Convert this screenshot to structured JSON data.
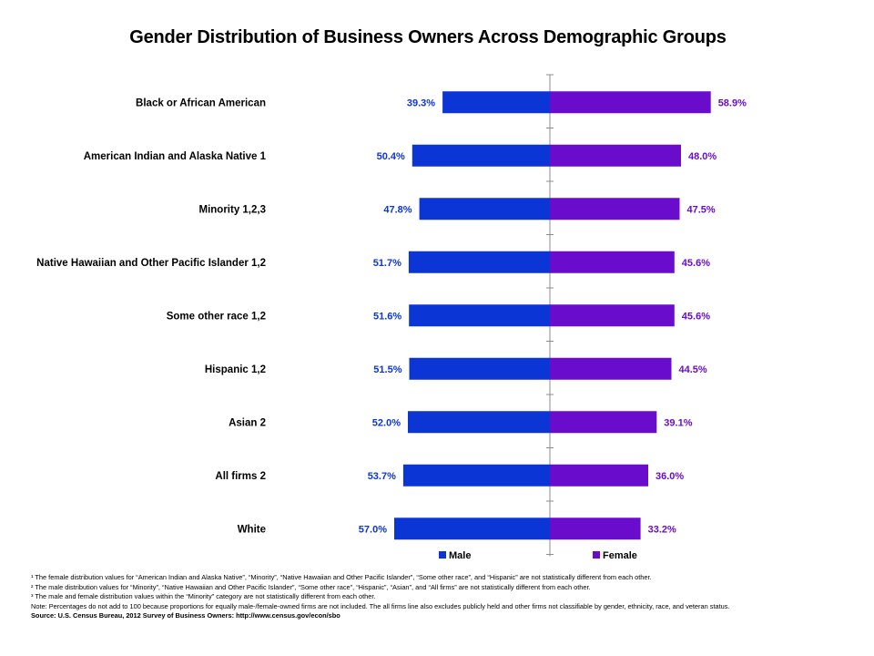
{
  "chart_data": {
    "type": "bar",
    "title": "Gender Distribution of Business Owners Across Demographic Groups",
    "categories": [
      "Black or African American",
      "American Indian and Alaska Native 1",
      "Minority 1,2,3",
      "Native Hawaiian and Other Pacific Islander 1,2",
      "Some other race 1,2",
      "Hispanic 1,2",
      "Asian 2",
      "All firms 2",
      "White"
    ],
    "series": [
      {
        "name": "Male",
        "color": "#0c35d6",
        "values": [
          39.3,
          50.4,
          47.8,
          51.7,
          51.6,
          51.5,
          52.0,
          53.7,
          57.0
        ],
        "labels": [
          "39.3%",
          "50.4%",
          "47.8%",
          "51.7%",
          "51.6%",
          "51.5%",
          "52.0%",
          "53.7%",
          "57.0%"
        ]
      },
      {
        "name": "Female",
        "color": "#6a0ccc",
        "values": [
          58.9,
          48.0,
          47.5,
          45.6,
          45.6,
          44.5,
          39.1,
          36.0,
          33.2
        ],
        "labels": [
          "58.9%",
          "48.0%",
          "47.5%",
          "45.6%",
          "45.6%",
          "44.5%",
          "39.1%",
          "36.0%",
          "33.2%"
        ]
      }
    ],
    "xlim": [
      0,
      100
    ],
    "orientation": "horizontal, diverging (male left, female right)",
    "legend": "bottom",
    "grid": false
  },
  "footnotes": {
    "fn1": "¹ The female distribution values for “American Indian and Alaska Native”, “Minority”, “Native Hawaiian and Other Pacific Islander”, “Some other race”, and “Hispanic” are not statistically different from each other.",
    "fn2": "² The male distribution values for “Minority”, “Native Hawaiian and Other Pacific Islander”, “Some other race”, “Hispanic”, “Asian”, and “All firms” are not statistically different from each other.",
    "fn3": "³ The male and female distribution values within the “Minority” category are not statistically different from each other.",
    "note": "Note: Percentages do not add to 100 because proportions for equally male-/female-owned firms are not included. The all firms line also excludes publicly held and other firms not classifiable by gender, ethnicity, race, and veteran status.",
    "source": "Source: U.S. Census Bureau, 2012 Survey of Business Owners: http://www.census.gov/econ/sbo"
  }
}
